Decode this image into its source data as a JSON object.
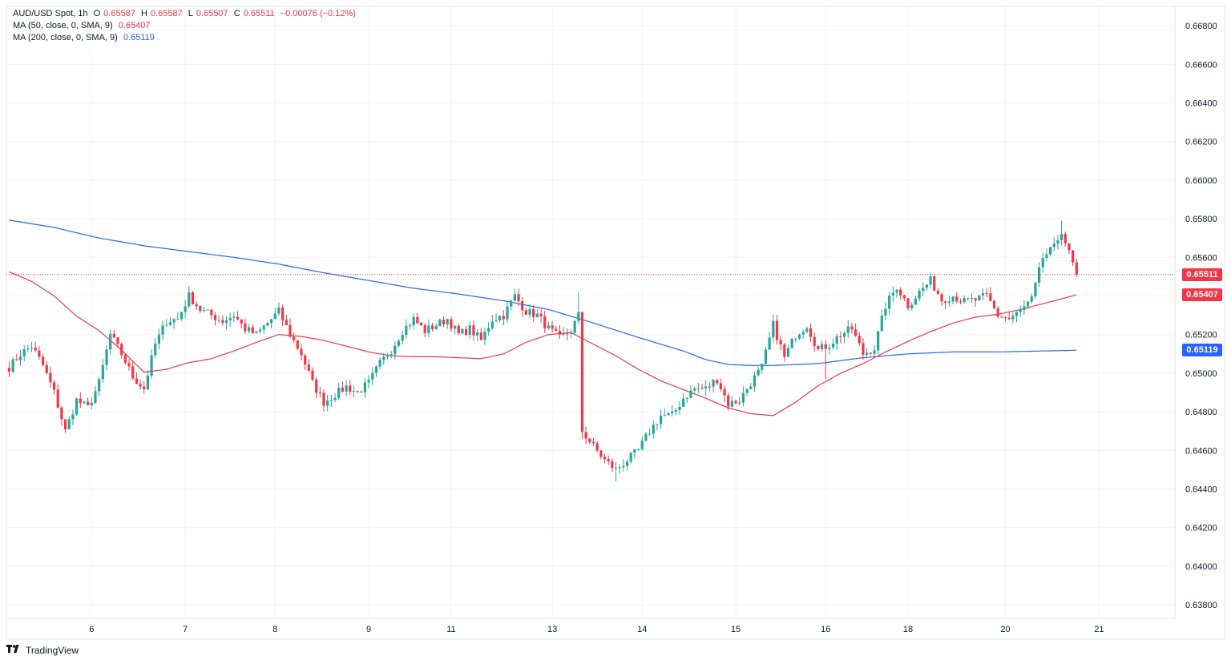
{
  "header": {
    "symbol": "AUD/USD Spot, 1h",
    "ohlc": [
      {
        "label": "O",
        "value": "0.65587"
      },
      {
        "label": "H",
        "value": "0.65587"
      },
      {
        "label": "L",
        "value": "0.65507"
      },
      {
        "label": "C",
        "value": "0.65511"
      }
    ],
    "change": "−0.00076 (−0.12%)",
    "ma50_label": "MA (50, close, 0, SMA, 9)",
    "ma50_value": "0.65407",
    "ma200_label": "MA (200, close, 0, SMA, 9)",
    "ma200_value": "0.65119"
  },
  "badges": {
    "last_price": "0.65511",
    "ma50": "0.65407",
    "ma200": "0.65119"
  },
  "colors": {
    "up": "#26a69a",
    "down": "#f23645",
    "ma50": "#f23645",
    "ma200": "#2962ff",
    "grid": "#f0f3fa"
  },
  "branding": {
    "logo_icon": "tradingview-logo-icon",
    "name": "TradingView"
  },
  "chart_data": {
    "type": "candlestick",
    "y_ticks": [
      "0.66800",
      "0.66600",
      "0.66400",
      "0.66200",
      "0.66000",
      "0.65800",
      "0.65600",
      "0.65400",
      "0.65200",
      "0.65000",
      "0.64800",
      "0.64600",
      "0.64400",
      "0.64200",
      "0.64000",
      "0.63800"
    ],
    "y_range": [
      0.6373,
      0.669
    ],
    "x_ticks": [
      "6",
      "7",
      "8",
      "9",
      "11",
      "13",
      "14",
      "15",
      "16",
      "18",
      "20",
      "21"
    ],
    "last_price": 0.65511,
    "anchors": [
      [
        0,
        0.6503
      ],
      [
        3,
        0.651
      ],
      [
        6,
        0.6514
      ],
      [
        9,
        0.6504
      ],
      [
        12,
        0.649
      ],
      [
        15,
        0.647
      ],
      [
        18,
        0.6486
      ],
      [
        21,
        0.6482
      ],
      [
        24,
        0.6495
      ],
      [
        27,
        0.652
      ],
      [
        30,
        0.651
      ],
      [
        33,
        0.6498
      ],
      [
        36,
        0.6492
      ],
      [
        39,
        0.6515
      ],
      [
        42,
        0.6527
      ],
      [
        45,
        0.6528
      ],
      [
        48,
        0.654
      ],
      [
        51,
        0.6533
      ],
      [
        54,
        0.653
      ],
      [
        57,
        0.6527
      ],
      [
        60,
        0.653
      ],
      [
        63,
        0.6523
      ],
      [
        66,
        0.652
      ],
      [
        69,
        0.6526
      ],
      [
        72,
        0.6532
      ],
      [
        75,
        0.652
      ],
      [
        78,
        0.651
      ],
      [
        81,
        0.6495
      ],
      [
        84,
        0.6485
      ],
      [
        87,
        0.6489
      ],
      [
        90,
        0.6493
      ],
      [
        93,
        0.649
      ],
      [
        96,
        0.6495
      ],
      [
        99,
        0.6505
      ],
      [
        102,
        0.6512
      ],
      [
        105,
        0.6522
      ],
      [
        108,
        0.6528
      ],
      [
        111,
        0.6522
      ],
      [
        114,
        0.6525
      ],
      [
        117,
        0.6528
      ],
      [
        120,
        0.652
      ],
      [
        123,
        0.6523
      ],
      [
        126,
        0.6517
      ],
      [
        129,
        0.6528
      ],
      [
        132,
        0.653
      ],
      [
        135,
        0.654
      ],
      [
        138,
        0.6532
      ],
      [
        141,
        0.653
      ],
      [
        144,
        0.6523
      ],
      [
        147,
        0.6518
      ],
      [
        150,
        0.6522
      ],
      [
        152,
        0.653
      ],
      [
        153,
        0.647
      ],
      [
        156,
        0.6462
      ],
      [
        159,
        0.6455
      ],
      [
        162,
        0.645
      ],
      [
        165,
        0.6455
      ],
      [
        168,
        0.646
      ],
      [
        171,
        0.647
      ],
      [
        174,
        0.6478
      ],
      [
        177,
        0.6478
      ],
      [
        180,
        0.6487
      ],
      [
        183,
        0.6492
      ],
      [
        186,
        0.6492
      ],
      [
        189,
        0.6497
      ],
      [
        192,
        0.6484
      ],
      [
        195,
        0.6486
      ],
      [
        198,
        0.6495
      ],
      [
        201,
        0.6503
      ],
      [
        204,
        0.6525
      ],
      [
        207,
        0.6508
      ],
      [
        210,
        0.652
      ],
      [
        213,
        0.6525
      ],
      [
        216,
        0.6512
      ],
      [
        219,
        0.6515
      ],
      [
        222,
        0.652
      ],
      [
        225,
        0.6523
      ],
      [
        228,
        0.651
      ],
      [
        231,
        0.6513
      ],
      [
        234,
        0.6535
      ],
      [
        237,
        0.6545
      ],
      [
        240,
        0.6535
      ],
      [
        243,
        0.6542
      ],
      [
        246,
        0.6548
      ],
      [
        249,
        0.6538
      ],
      [
        252,
        0.654
      ],
      [
        255,
        0.6537
      ],
      [
        258,
        0.6538
      ],
      [
        261,
        0.654
      ],
      [
        264,
        0.653
      ],
      [
        267,
        0.6528
      ],
      [
        270,
        0.6532
      ],
      [
        273,
        0.6538
      ],
      [
        276,
        0.656
      ],
      [
        279,
        0.6565
      ],
      [
        281,
        0.6574
      ],
      [
        283,
        0.6562
      ],
      [
        285,
        0.6551
      ]
    ],
    "ma50": [
      [
        0,
        0.65525
      ],
      [
        6,
        0.65475
      ],
      [
        12,
        0.654
      ],
      [
        18,
        0.65295
      ],
      [
        24,
        0.6522
      ],
      [
        30,
        0.6512
      ],
      [
        36,
        0.65005
      ],
      [
        42,
        0.6502
      ],
      [
        48,
        0.65055
      ],
      [
        54,
        0.65075
      ],
      [
        60,
        0.65115
      ],
      [
        66,
        0.6516
      ],
      [
        72,
        0.652
      ],
      [
        78,
        0.6519
      ],
      [
        84,
        0.6517
      ],
      [
        90,
        0.6514
      ],
      [
        96,
        0.6511
      ],
      [
        102,
        0.6509
      ],
      [
        108,
        0.65085
      ],
      [
        114,
        0.65085
      ],
      [
        120,
        0.6508
      ],
      [
        126,
        0.65075
      ],
      [
        132,
        0.651
      ],
      [
        138,
        0.6516
      ],
      [
        144,
        0.652
      ],
      [
        150,
        0.6521
      ],
      [
        156,
        0.6515
      ],
      [
        162,
        0.6509
      ],
      [
        168,
        0.6502
      ],
      [
        174,
        0.6496
      ],
      [
        180,
        0.64915
      ],
      [
        186,
        0.6487
      ],
      [
        192,
        0.6482
      ],
      [
        198,
        0.6479
      ],
      [
        204,
        0.6478
      ],
      [
        210,
        0.6485
      ],
      [
        216,
        0.64935
      ],
      [
        222,
        0.65
      ],
      [
        228,
        0.6505
      ],
      [
        234,
        0.6511
      ],
      [
        240,
        0.65165
      ],
      [
        246,
        0.65215
      ],
      [
        252,
        0.6526
      ],
      [
        258,
        0.6529
      ],
      [
        264,
        0.65305
      ],
      [
        270,
        0.6533
      ],
      [
        276,
        0.6536
      ],
      [
        282,
        0.6539
      ],
      [
        285,
        0.65407
      ]
    ],
    "ma200": [
      [
        0,
        0.65793
      ],
      [
        12,
        0.65755
      ],
      [
        24,
        0.657
      ],
      [
        36,
        0.6566
      ],
      [
        48,
        0.6563
      ],
      [
        60,
        0.656
      ],
      [
        72,
        0.65565
      ],
      [
        84,
        0.6552
      ],
      [
        96,
        0.6548
      ],
      [
        108,
        0.6544
      ],
      [
        120,
        0.6541
      ],
      [
        132,
        0.65375
      ],
      [
        144,
        0.6533
      ],
      [
        156,
        0.6526
      ],
      [
        168,
        0.65185
      ],
      [
        180,
        0.65115
      ],
      [
        186,
        0.6507
      ],
      [
        192,
        0.65045
      ],
      [
        198,
        0.6504
      ],
      [
        204,
        0.6504
      ],
      [
        216,
        0.6505
      ],
      [
        228,
        0.6508
      ],
      [
        240,
        0.651
      ],
      [
        252,
        0.6511
      ],
      [
        264,
        0.6511
      ],
      [
        276,
        0.65115
      ],
      [
        285,
        0.65119
      ]
    ]
  }
}
